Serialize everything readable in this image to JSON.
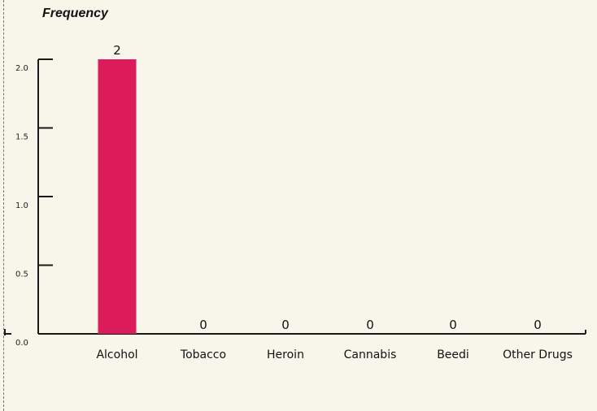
{
  "colors": {
    "bar": "#dc1c5a",
    "axis": "#1a1a1a",
    "background": "#f8f5ea"
  },
  "chart_data": {
    "type": "bar",
    "title": "Frequency",
    "xlabel": "",
    "ylabel": "",
    "categories": [
      "Alcohol",
      "Tobacco",
      "Heroin",
      "Cannabis",
      "Beedi",
      "Other Drugs"
    ],
    "values": [
      2,
      0,
      0,
      0,
      0,
      0
    ],
    "data_labels": [
      "2",
      "0",
      "0",
      "0",
      "0",
      "0"
    ],
    "ylim": [
      0,
      2
    ],
    "yticks": [
      0,
      0.5,
      1,
      1.5,
      2
    ],
    "ytick_labels": [
      "0.0",
      "0.5",
      "1.0",
      "1.5",
      "2.0"
    ],
    "grid": false,
    "legend": "none"
  }
}
